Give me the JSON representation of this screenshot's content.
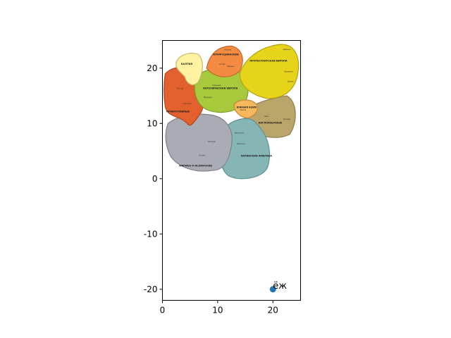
{
  "chart_data": {
    "type": "scatter",
    "title": "",
    "xlabel": "",
    "ylabel": "",
    "xlim": [
      0,
      25
    ],
    "ylim": [
      -22,
      25
    ],
    "x_ticks": [
      "0",
      "10",
      "20"
    ],
    "y_ticks": [
      "-20",
      "-10",
      "0",
      "10",
      "20"
    ],
    "grid": false,
    "points": [
      {
        "x": 20,
        "y": -20,
        "label": "ёж",
        "color": "#1f77b4"
      }
    ],
    "background_image": {
      "description_color_regions": [
        "#f58a43",
        "#e6d31a",
        "#fff2a0",
        "#e2602e",
        "#a8c93c",
        "#f7b85c",
        "#b9a46a",
        "#a9acb5",
        "#86b5b5"
      ],
      "extent": [
        0,
        25,
        0,
        25
      ],
      "labels": [
        {
          "text": "КОНФУЦИАНСКИЕ",
          "group": "region"
        },
        {
          "text": "ПРОТЕСТАНТСКАЯ ЕВРОПА",
          "group": "region"
        },
        {
          "text": "БАЛТИЯ",
          "group": "region"
        },
        {
          "text": "КАТОЛИЧЕСКАЯ ЕВРОПА",
          "group": "region"
        },
        {
          "text": "ПРАВОСЛАВНЫЕ",
          "group": "region"
        },
        {
          "text": "ЮЖНАЯ АЗИЯ",
          "group": "region"
        },
        {
          "text": "АНГЛОЯЗЫЧНЫЕ",
          "group": "region"
        },
        {
          "text": "ЛАТИНСКАЯ АМЕРИКА",
          "group": "region"
        },
        {
          "text": "АФРИКА И ИСЛАМСКИЕ",
          "group": "region"
        },
        {
          "text": "Япония",
          "group": "place"
        },
        {
          "text": "Швеция",
          "group": "place"
        },
        {
          "text": "Норвегия",
          "group": "place"
        },
        {
          "text": "Дания",
          "group": "place"
        },
        {
          "text": "Германия",
          "group": "place"
        },
        {
          "text": "Франция",
          "group": "place"
        },
        {
          "text": "Россия",
          "group": "place"
        },
        {
          "text": "Украина",
          "group": "place"
        },
        {
          "text": "Китай",
          "group": "place"
        },
        {
          "text": "Тайвань",
          "group": "place"
        },
        {
          "text": "Индия",
          "group": "place"
        },
        {
          "text": "США",
          "group": "place"
        },
        {
          "text": "Канада",
          "group": "place"
        },
        {
          "text": "Бразилия",
          "group": "place"
        },
        {
          "text": "Мексика",
          "group": "place"
        },
        {
          "text": "Нигерия",
          "group": "place"
        },
        {
          "text": "Египет",
          "group": "place"
        }
      ]
    }
  }
}
